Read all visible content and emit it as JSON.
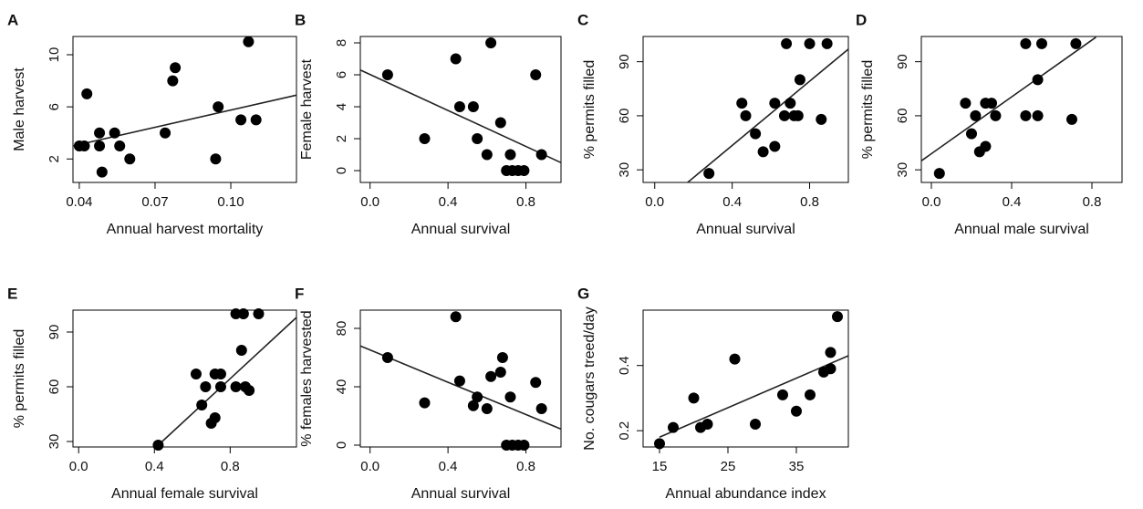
{
  "chart_data": [
    {
      "type": "scatter",
      "panel": "A",
      "xlabel": "Annual harvest mortality",
      "ylabel": "Male harvest",
      "x": [
        0.04,
        0.042,
        0.043,
        0.048,
        0.048,
        0.049,
        0.054,
        0.056,
        0.06,
        0.074,
        0.077,
        0.078,
        0.094,
        0.095,
        0.104,
        0.107,
        0.11
      ],
      "y": [
        3,
        3,
        7,
        4,
        3,
        1,
        4,
        3,
        2,
        4,
        8,
        9,
        2,
        6,
        5,
        11,
        5
      ],
      "trend_line": {
        "x": [
          0.0375,
          0.126
        ],
        "y": [
          3.0,
          6.9
        ]
      },
      "xlim": [
        0.0375,
        0.126
      ],
      "xticks": [
        {
          "value": 0.04,
          "label": "0.04"
        },
        {
          "value": 0.07,
          "label": "0.07"
        },
        {
          "value": 0.1,
          "label": "0.10"
        }
      ],
      "ylim": [
        0.2,
        11.4
      ],
      "yticks": [
        2,
        6,
        10
      ],
      "color": "#000000"
    },
    {
      "type": "scatter",
      "panel": "B",
      "xlabel": "Annual survival",
      "ylabel": "Female harvest",
      "x": [
        0.09,
        0.28,
        0.44,
        0.46,
        0.53,
        0.55,
        0.6,
        0.62,
        0.67,
        0.7,
        0.72,
        0.73,
        0.76,
        0.79,
        0.85,
        0.88
      ],
      "y": [
        6,
        2,
        7,
        4,
        4,
        2,
        1,
        8,
        3,
        0,
        1,
        0,
        0,
        0,
        6,
        1
      ],
      "trend_line": {
        "x": [
          -0.05,
          0.98
        ],
        "y": [
          6.3,
          0.5
        ]
      },
      "xlim": [
        -0.05,
        0.98
      ],
      "xticks": [
        {
          "value": 0,
          "label": "0.0"
        },
        0.4,
        0.8
      ],
      "ylim": [
        -0.74,
        8.4
      ],
      "yticks": [
        0,
        2,
        4,
        6,
        8
      ],
      "color": "#000000"
    },
    {
      "type": "scatter",
      "panel": "C",
      "xlabel": "Annual survival",
      "ylabel": "% permits filled",
      "x": [
        0.28,
        0.45,
        0.47,
        0.52,
        0.56,
        0.62,
        0.62,
        0.67,
        0.68,
        0.7,
        0.72,
        0.74,
        0.75,
        0.8,
        0.86,
        0.89
      ],
      "y": [
        28,
        67,
        60,
        50,
        40,
        43,
        67,
        60,
        100,
        67,
        60,
        60,
        80,
        100,
        58,
        100
      ],
      "trend_line": {
        "x": [
          0.17,
          1.0
        ],
        "y": [
          23,
          97
        ]
      },
      "xlim": [
        -0.06,
        1.0
      ],
      "xticks": [
        {
          "value": 0,
          "label": "0.0"
        },
        0.4,
        0.8
      ],
      "ylim": [
        23,
        104
      ],
      "yticks": [
        30,
        60,
        90
      ],
      "color": "#000000"
    },
    {
      "type": "scatter",
      "panel": "D",
      "xlabel": "Annual male survival",
      "ylabel": "% permits filled",
      "x": [
        0.04,
        0.17,
        0.2,
        0.22,
        0.24,
        0.27,
        0.27,
        0.3,
        0.32,
        0.47,
        0.47,
        0.53,
        0.53,
        0.55,
        0.7,
        0.72
      ],
      "y": [
        28,
        67,
        50,
        60,
        40,
        43,
        67,
        67,
        60,
        60,
        100,
        80,
        60,
        100,
        58,
        100
      ],
      "trend_line": {
        "x": [
          -0.05,
          0.82
        ],
        "y": [
          35,
          103.6
        ]
      },
      "xlim": [
        -0.05,
        0.95
      ],
      "xticks": [
        {
          "value": 0,
          "label": "0.0"
        },
        0.4,
        0.8
      ],
      "ylim": [
        23,
        104
      ],
      "yticks": [
        30,
        60,
        90
      ],
      "color": "#000000"
    },
    {
      "type": "scatter",
      "panel": "E",
      "xlabel": "Annual female survival",
      "ylabel": "% permits filled",
      "x": [
        0.42,
        0.62,
        0.65,
        0.67,
        0.7,
        0.72,
        0.72,
        0.75,
        0.75,
        0.83,
        0.83,
        0.86,
        0.87,
        0.88,
        0.9,
        0.95
      ],
      "y": [
        28,
        67,
        50,
        60,
        40,
        67,
        43,
        60,
        67,
        100,
        60,
        80,
        100,
        60,
        58,
        100
      ],
      "trend_line": {
        "x": [
          0.42,
          1.15
        ],
        "y": [
          28,
          98
        ]
      },
      "xlim": [
        -0.03,
        1.15
      ],
      "xticks": [
        {
          "value": 0,
          "label": "0.0"
        },
        0.4,
        0.8
      ],
      "ylim": [
        27,
        102
      ],
      "yticks": [
        30,
        60,
        90
      ],
      "color": "#000000"
    },
    {
      "type": "scatter",
      "panel": "F",
      "xlabel": "Annual survival",
      "ylabel": "% females harvested",
      "x": [
        0.09,
        0.28,
        0.44,
        0.46,
        0.53,
        0.55,
        0.6,
        0.62,
        0.67,
        0.68,
        0.7,
        0.72,
        0.73,
        0.76,
        0.79,
        0.85,
        0.88
      ],
      "y": [
        60,
        29,
        88,
        44,
        27,
        33,
        25,
        47,
        50,
        60,
        0,
        33,
        0,
        0,
        0,
        43,
        25
      ],
      "trend_line": {
        "x": [
          -0.05,
          0.98
        ],
        "y": [
          68,
          11
        ]
      },
      "xlim": [
        -0.05,
        0.98
      ],
      "xticks": [
        {
          "value": 0,
          "label": "0.0"
        },
        0.4,
        0.8
      ],
      "ylim": [
        -1.25,
        92.5
      ],
      "yticks": [
        0,
        40,
        80
      ],
      "color": "#000000"
    },
    {
      "type": "scatter",
      "panel": "G",
      "xlabel": "Annual abundance index",
      "ylabel": "No. cougars treed/day",
      "x": [
        15,
        17,
        20,
        21,
        22,
        26,
        29,
        33,
        35,
        37,
        39,
        40,
        40,
        41
      ],
      "y": [
        0.16,
        0.21,
        0.3,
        0.21,
        0.22,
        0.42,
        0.22,
        0.31,
        0.26,
        0.31,
        0.38,
        0.39,
        0.44,
        0.55
      ],
      "trend_line": {
        "x": [
          15,
          42.6
        ],
        "y": [
          0.18,
          0.43
        ]
      },
      "xlim": [
        12.6,
        42.6
      ],
      "xticks": [
        15,
        25,
        35
      ],
      "ylim": [
        0.15,
        0.57
      ],
      "yticks": [
        0.2,
        0.4
      ],
      "color": "#000000"
    }
  ]
}
